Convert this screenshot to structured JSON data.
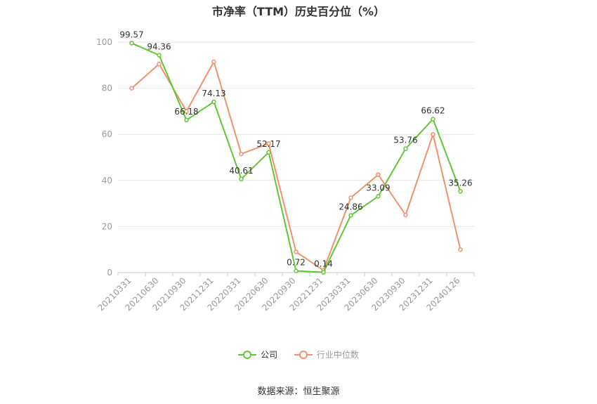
{
  "chart_data": {
    "type": "line",
    "title": "市净率（TTM）历史百分位（%）",
    "categories": [
      "20210331",
      "20210630",
      "20210930",
      "20211231",
      "20220331",
      "20220630",
      "20220930",
      "20221231",
      "20230331",
      "20230630",
      "20230930",
      "20231231",
      "20240126"
    ],
    "series": [
      {
        "name": "公司",
        "color": "#5ec734",
        "values": [
          99.57,
          94.36,
          66.18,
          74.13,
          40.61,
          52.17,
          0.72,
          0.14,
          24.86,
          33.09,
          53.76,
          66.62,
          35.26
        ],
        "labels": [
          "99.57",
          "94.36",
          "66.18",
          "74.13",
          "40.61",
          "52.17",
          "0.72",
          "0.14",
          "24.86",
          "33.09",
          "53.76",
          "66.62",
          "35.26"
        ]
      },
      {
        "name": "行业中位数",
        "color": "#f0916a",
        "values": [
          80,
          90.5,
          70,
          91.5,
          51.5,
          56,
          9,
          1,
          32.5,
          42.5,
          25,
          60,
          10
        ]
      }
    ],
    "ylim": [
      0,
      100
    ],
    "yticks": [
      0,
      20,
      40,
      60,
      80,
      100
    ],
    "grid": true,
    "legend_position": "bottom"
  },
  "source": "数据来源：恒生聚源"
}
